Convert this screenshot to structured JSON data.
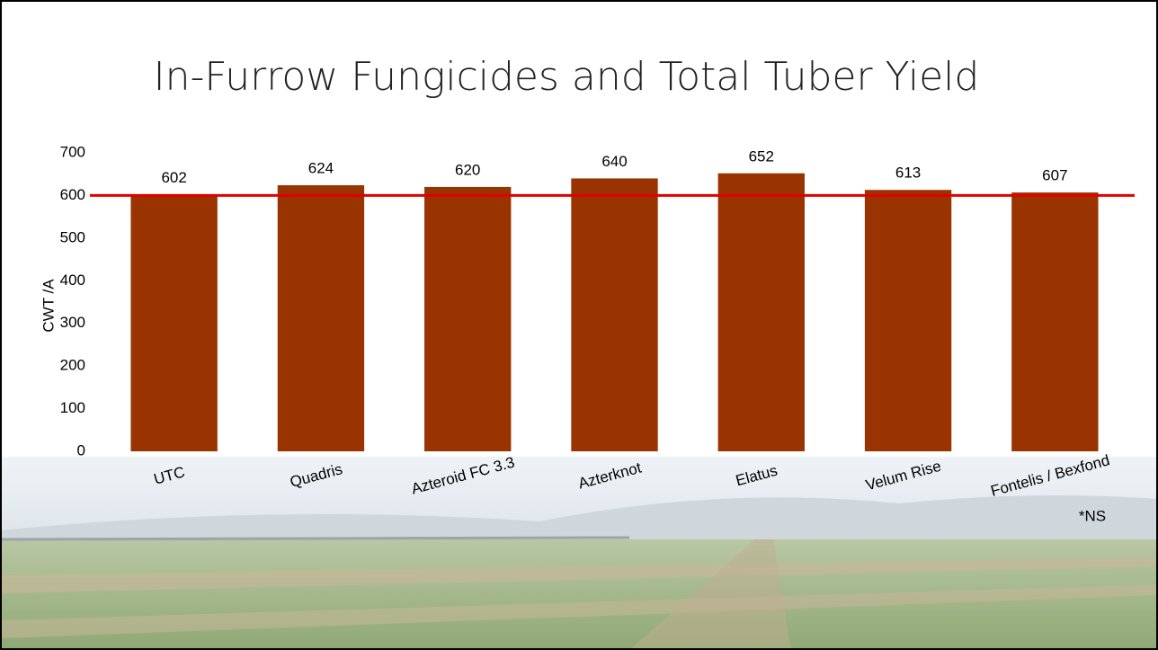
{
  "chart_data": {
    "type": "bar",
    "title": "In-Furrow Fungicides and Total Tuber Yield",
    "y_label": "CWT /A",
    "categories": [
      "UTC",
      "Quadris",
      "Azteroid FC 3.3",
      "Azterknot",
      "Elatus",
      "Velum Rise",
      "Fontelis / Bexfond"
    ],
    "values": [
      602,
      624,
      620,
      640,
      652,
      613,
      607
    ],
    "color": "#993300",
    "ylim": [
      0,
      700
    ],
    "yticks": [
      0,
      100,
      200,
      300,
      400,
      500,
      600,
      700
    ],
    "reference_line": {
      "value": 600,
      "color": "#e00000"
    },
    "annotation": "*NS"
  }
}
